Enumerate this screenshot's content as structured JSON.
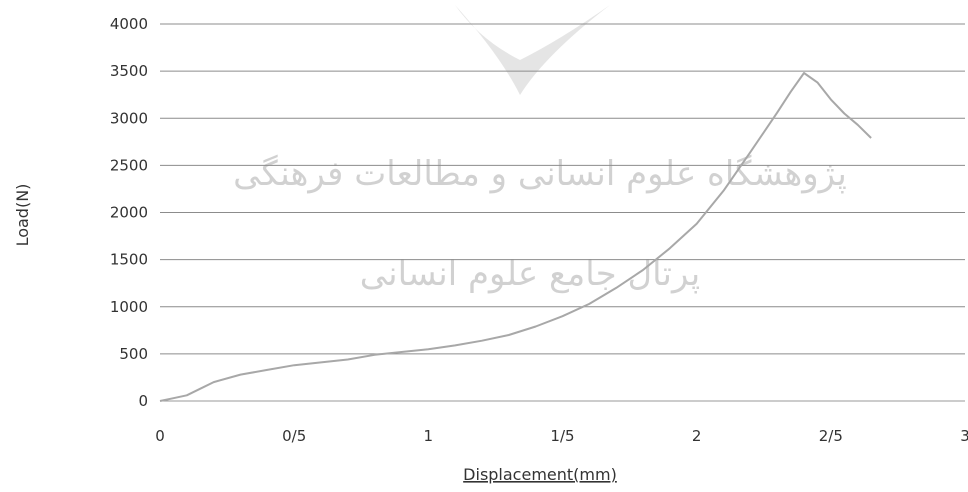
{
  "watermark": {
    "line1": "پژوهشگاه علوم انسانی و مطالعات فرهنگی",
    "line2": "پرتال جامع علوم انسانی"
  },
  "chart_data": {
    "type": "line",
    "title": "",
    "xlabel": "Displacement(mm)",
    "ylabel": "Load(N)",
    "xlim": [
      0,
      3
    ],
    "ylim": [
      0,
      4000
    ],
    "x_ticks": [
      0,
      0.5,
      1,
      1.5,
      2,
      2.5,
      3
    ],
    "x_tick_labels": [
      "0",
      "0/5",
      "1",
      "1/5",
      "2",
      "2/5",
      "3"
    ],
    "y_ticks": [
      0,
      500,
      1000,
      1500,
      2000,
      2500,
      3000,
      3500,
      4000
    ],
    "y_tick_labels": [
      "0",
      "500",
      "1000",
      "1500",
      "2000",
      "2500",
      "3000",
      "3500",
      "4000"
    ],
    "grid": "horizontal",
    "legend": "none",
    "line_color": "#a8a8a8",
    "series": [
      {
        "x": [
          0,
          0.05,
          0.1,
          0.15,
          0.2,
          0.3,
          0.4,
          0.5,
          0.6,
          0.7,
          0.8,
          0.9,
          1.0,
          1.1,
          1.2,
          1.3,
          1.4,
          1.5,
          1.6,
          1.7,
          1.8,
          1.9,
          2.0,
          2.1,
          2.2,
          2.3,
          2.35,
          2.4,
          2.45,
          2.5,
          2.55,
          2.6,
          2.65
        ],
        "y": [
          0,
          30,
          60,
          130,
          200,
          280,
          330,
          380,
          410,
          440,
          490,
          520,
          550,
          590,
          640,
          700,
          790,
          900,
          1030,
          1200,
          1390,
          1620,
          1880,
          2230,
          2640,
          3060,
          3280,
          3480,
          3380,
          3200,
          3050,
          2930,
          2790
        ]
      }
    ]
  }
}
